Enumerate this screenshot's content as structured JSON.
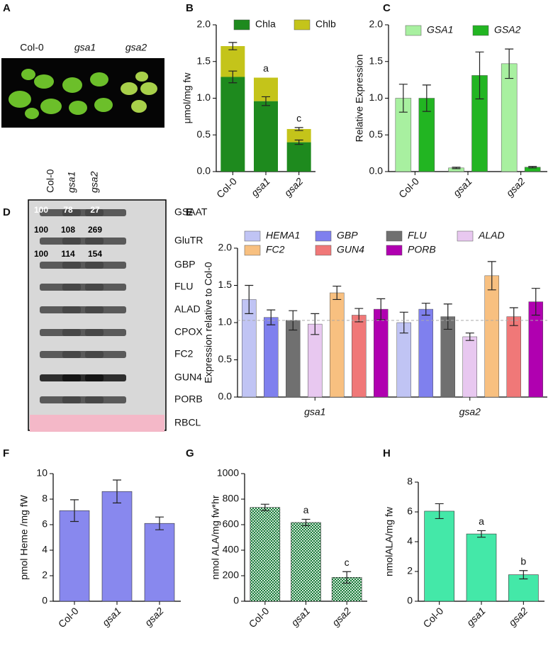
{
  "photo": {
    "letter": "A",
    "labels": [
      "Col-0",
      "gsa1",
      "gsa2"
    ]
  },
  "blot": {
    "letter": "D",
    "lanes": [
      "Col-0",
      "gsa1",
      "gsa2"
    ],
    "rows": [
      {
        "label": "GSAAT",
        "values": [
          "100",
          "78",
          "27"
        ]
      },
      {
        "label": "GluTR",
        "values": [
          "100",
          "108",
          "269"
        ]
      },
      {
        "label": "GBP",
        "values": [
          "100",
          "114",
          "154"
        ]
      },
      {
        "label": "FLU"
      },
      {
        "label": "ALAD"
      },
      {
        "label": "CPOX"
      },
      {
        "label": "FC2"
      },
      {
        "label": "GUN4"
      },
      {
        "label": "PORB"
      },
      {
        "label": "RBCL"
      }
    ]
  },
  "chart_data": [
    {
      "type": "stacked_bar",
      "letter": "B",
      "y_label": "μmol/mg fw",
      "categories": [
        "Col-0",
        "gsa1",
        "gsa2"
      ],
      "series": [
        {
          "name": "Chla",
          "color": "#1e8a1e",
          "values": [
            1.29,
            0.96,
            0.4
          ],
          "errors": [
            0.08,
            0.06,
            0.03
          ]
        },
        {
          "name": "Chlb",
          "color": "#c4c41a",
          "values": [
            0.42,
            0.32,
            0.18
          ],
          "errors": [
            0.05,
            null,
            0.02
          ]
        }
      ],
      "significance": [
        null,
        "a",
        "c"
      ],
      "ylim": [
        0,
        2
      ],
      "yticks": [
        {
          "value": 0,
          "label": "0.0"
        },
        {
          "value": 0.5,
          "label": "0.5"
        },
        {
          "value": 1,
          "label": "1.0"
        },
        {
          "value": 1.5,
          "label": "1.5"
        },
        {
          "value": 2,
          "label": "2.0"
        }
      ]
    },
    {
      "type": "grouped_bar",
      "letter": "C",
      "y_label": "Relative Expression",
      "categories": [
        "Col-0",
        "gsa1",
        "gsa2"
      ],
      "series": [
        {
          "name": "GSA1",
          "color": "#a8f0a0",
          "values": [
            1.0,
            0.05,
            1.47
          ],
          "errors": [
            0.19,
            0.01,
            0.2
          ]
        },
        {
          "name": "GSA2",
          "color": "#22b522",
          "values": [
            1.0,
            1.31,
            0.06
          ],
          "errors": [
            0.18,
            0.32,
            0.01
          ]
        }
      ],
      "ylim": [
        0,
        2
      ],
      "yticks": [
        {
          "value": 0,
          "label": "0.0"
        },
        {
          "value": 0.5,
          "label": "0.5"
        },
        {
          "value": 1,
          "label": "1.0"
        },
        {
          "value": 1.5,
          "label": "1.5"
        },
        {
          "value": 2,
          "label": "2.0"
        }
      ]
    },
    {
      "type": "grouped_bar",
      "letter": "E",
      "y_label": "Expression relative to Col-0",
      "categories": [
        "gsa1",
        "gsa2"
      ],
      "series": [
        {
          "name": "HEMA1",
          "color": "#c0c4f4",
          "values": [
            1.31,
            1.0
          ],
          "errors": [
            0.19,
            0.14
          ]
        },
        {
          "name": "GBP",
          "color": "#7f80ee",
          "values": [
            1.07,
            1.18
          ],
          "errors": [
            0.1,
            0.08
          ]
        },
        {
          "name": "FLU",
          "color": "#707070",
          "values": [
            1.03,
            1.08
          ],
          "errors": [
            0.13,
            0.17
          ]
        },
        {
          "name": "ALAD",
          "color": "#e8c8f0",
          "values": [
            0.98,
            0.81
          ],
          "errors": [
            0.14,
            0.05
          ]
        },
        {
          "name": "FC2",
          "color": "#f8c080",
          "values": [
            1.4,
            1.63
          ],
          "errors": [
            0.09,
            0.19
          ]
        },
        {
          "name": "GUN4",
          "color": "#f07878",
          "values": [
            1.1,
            1.08
          ],
          "errors": [
            0.09,
            0.12
          ]
        },
        {
          "name": "PORB",
          "color": "#b000b0",
          "values": [
            1.18,
            1.28
          ],
          "errors": [
            0.14,
            0.18
          ]
        }
      ],
      "reference_line": 1.03,
      "ylim": [
        0,
        2
      ],
      "yticks": [
        {
          "value": 0,
          "label": "0.0"
        },
        {
          "value": 0.5,
          "label": "0.5"
        },
        {
          "value": 1,
          "label": "1.0"
        },
        {
          "value": 1.5,
          "label": "1.5"
        },
        {
          "value": 2,
          "label": "2.0"
        }
      ]
    },
    {
      "type": "bar",
      "letter": "F",
      "y_label": "pmol Heme /mg fW",
      "categories": [
        "Col-0",
        "gsa1",
        "gsa2"
      ],
      "color": "#8888ee",
      "values": [
        7.1,
        8.6,
        6.1
      ],
      "errors": [
        0.85,
        0.9,
        0.5
      ],
      "ylim": [
        0,
        10
      ],
      "yticks": [
        0,
        2,
        4,
        6,
        8,
        10
      ]
    },
    {
      "type": "bar",
      "letter": "G",
      "y_label": "nmol ALA/mg fw*hr",
      "categories": [
        "Col-0",
        "gsa1",
        "gsa2"
      ],
      "color": "#1a7a3a",
      "pattern": "check",
      "values": [
        735,
        617,
        187
      ],
      "errors": [
        25,
        25,
        45
      ],
      "significance": [
        null,
        "a",
        "c"
      ],
      "ylim": [
        0,
        1000
      ],
      "yticks": [
        0,
        200,
        400,
        600,
        800,
        1000
      ]
    },
    {
      "type": "bar",
      "letter": "H",
      "y_label": "nmolALA/mg fw",
      "categories": [
        "Col-0",
        "gsa1",
        "gsa2"
      ],
      "color": "#44e8a8",
      "values": [
        6.05,
        4.52,
        1.78
      ],
      "errors": [
        0.5,
        0.22,
        0.28
      ],
      "significance": [
        null,
        "a",
        "b"
      ],
      "ylim": [
        0,
        8
      ],
      "yticks": [
        0,
        2,
        4,
        6,
        8
      ]
    }
  ]
}
